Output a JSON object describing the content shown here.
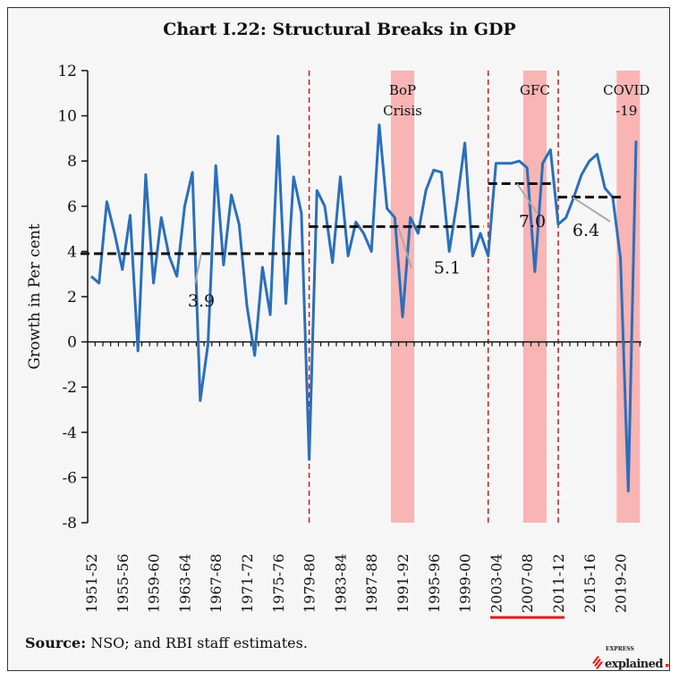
{
  "chart_data": {
    "type": "line",
    "title": "Chart I.22: Structural Breaks in GDP",
    "xlabel": "",
    "ylabel": "Growth in Per cent",
    "ylim": [
      -8,
      12
    ],
    "yticks": [
      -8,
      -6,
      -4,
      -2,
      0,
      2,
      4,
      6,
      8,
      10,
      12
    ],
    "grid": false,
    "categories": [
      "1951-52",
      "1952-53",
      "1953-54",
      "1954-55",
      "1955-56",
      "1956-57",
      "1957-58",
      "1958-59",
      "1959-60",
      "1960-61",
      "1961-62",
      "1962-63",
      "1963-64",
      "1964-65",
      "1965-66",
      "1966-67",
      "1967-68",
      "1968-69",
      "1969-70",
      "1970-71",
      "1971-72",
      "1972-73",
      "1973-74",
      "1974-75",
      "1975-76",
      "1976-77",
      "1977-78",
      "1978-79",
      "1979-80",
      "1980-81",
      "1981-82",
      "1982-83",
      "1983-84",
      "1984-85",
      "1985-86",
      "1986-87",
      "1987-88",
      "1988-89",
      "1989-90",
      "1990-91",
      "1991-92",
      "1992-93",
      "1993-94",
      "1994-95",
      "1995-96",
      "1996-97",
      "1997-98",
      "1998-99",
      "1999-00",
      "2000-01",
      "2001-02",
      "2002-03",
      "2003-04",
      "2004-05",
      "2005-06",
      "2006-07",
      "2007-08",
      "2008-09",
      "2009-10",
      "2010-11",
      "2011-12",
      "2012-13",
      "2013-14",
      "2014-15",
      "2015-16",
      "2016-17",
      "2017-18",
      "2018-19",
      "2019-20",
      "2020-21",
      "2021-22"
    ],
    "xtick_labels": [
      "1951-52",
      "1955-56",
      "1959-60",
      "1963-64",
      "1967-68",
      "1971-72",
      "1975-76",
      "1979-80",
      "1983-84",
      "1987-88",
      "1991-92",
      "1995-96",
      "1999-00",
      "2003-04",
      "2007-08",
      "2011-12",
      "2015-16",
      "2019-20"
    ],
    "values": [
      2.9,
      2.6,
      6.2,
      4.8,
      3.2,
      5.6,
      -0.4,
      7.4,
      2.6,
      5.5,
      3.8,
      2.9,
      6.0,
      7.5,
      -2.6,
      -0.1,
      7.8,
      3.4,
      6.5,
      5.2,
      1.6,
      -0.6,
      3.3,
      1.2,
      9.1,
      1.7,
      7.3,
      5.7,
      -5.2,
      6.7,
      6.0,
      3.5,
      7.3,
      3.8,
      5.3,
      4.8,
      4.0,
      9.6,
      5.9,
      5.5,
      1.1,
      5.5,
      4.8,
      6.7,
      7.6,
      7.5,
      4.0,
      6.2,
      8.8,
      3.8,
      4.8,
      3.8,
      7.9,
      7.9,
      7.9,
      8.0,
      7.7,
      3.1,
      7.9,
      8.5,
      5.2,
      5.5,
      6.4,
      7.4,
      8.0,
      8.3,
      6.8,
      6.4,
      3.7,
      -6.6,
      8.9
    ],
    "series_color": "#2a6fbb",
    "structural_breaks": [
      "1979-80",
      "2002-03",
      "2011-12"
    ],
    "break_color": "#c0201e",
    "period_means": [
      {
        "from": "1951-52",
        "to": "1978-79",
        "value": 3.9,
        "label": "3.9"
      },
      {
        "from": "1979-80",
        "to": "2001-02",
        "value": 5.1,
        "label": "5.1"
      },
      {
        "from": "2002-03",
        "to": "2010-11",
        "value": 7.0,
        "label": "7.0"
      },
      {
        "from": "2011-12",
        "to": "2019-20",
        "value": 6.4,
        "label": "6.4"
      }
    ],
    "shaded_periods": [
      {
        "from": "1990-91",
        "to": "1992-93",
        "label_lines": [
          "BoP",
          "Crisis"
        ]
      },
      {
        "from": "2007-08",
        "to": "2009-10",
        "label_lines": [
          "GFC"
        ]
      },
      {
        "from": "2019-20",
        "to": "2021-22",
        "label_lines": [
          "COVID",
          "-19"
        ]
      }
    ],
    "shade_color": "#f9b4b4"
  },
  "source": {
    "prefix": "Source:",
    "text": " NSO; and RBI staff estimates."
  },
  "watermark": {
    "brand_small": "EXPRESS",
    "brand": "explained",
    "accent": "#e8241b"
  }
}
